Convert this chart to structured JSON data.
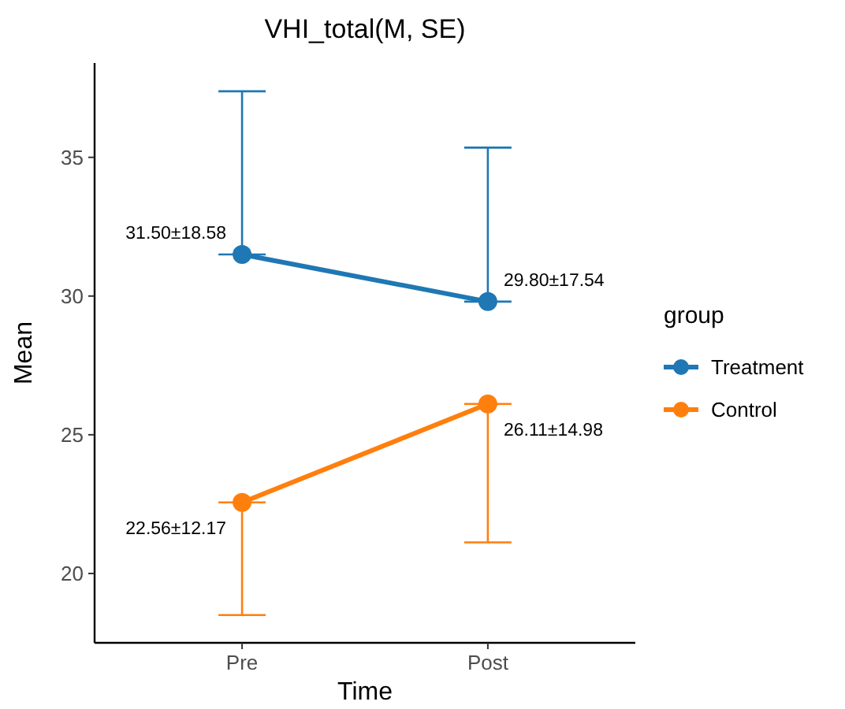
{
  "chart_data": {
    "type": "line",
    "title": "VHI_total(M, SE)",
    "xlabel": "Time",
    "ylabel": "Mean",
    "legend_title": "group",
    "categories": [
      "Pre",
      "Post"
    ],
    "series": [
      {
        "name": "Treatment",
        "color": "#1f77b4",
        "values": [
          31.5,
          29.8
        ],
        "errors": [
          [
            31.5,
            37.38
          ],
          [
            29.8,
            35.35
          ]
        ],
        "value_labels": [
          "31.50±18.58",
          "29.80±17.54"
        ]
      },
      {
        "name": "Control",
        "color": "#ff7f0e",
        "values": [
          22.56,
          26.11
        ],
        "errors": [
          [
            18.5,
            22.56
          ],
          [
            21.12,
            26.11
          ]
        ],
        "value_labels": [
          "22.56±12.17",
          "26.11±14.98"
        ]
      }
    ],
    "ylim": [
      17.5,
      38.4
    ],
    "yticks": [
      20,
      25,
      30,
      35
    ],
    "grid": false,
    "legend": "right",
    "marker": "circle",
    "line_style": "solid"
  }
}
